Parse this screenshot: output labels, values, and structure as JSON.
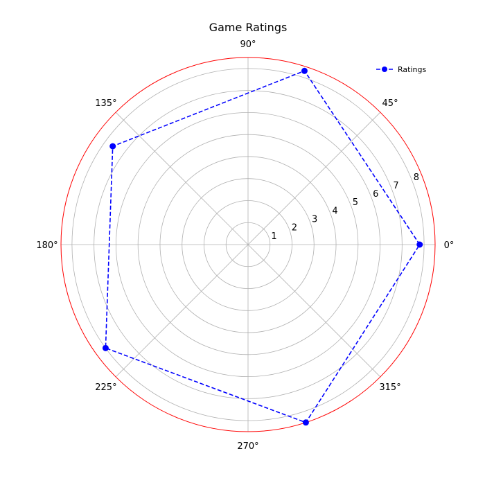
{
  "chart_data": {
    "type": "line",
    "projection": "polar",
    "title": "Game Ratings",
    "theta_tick_labels": [
      "0°",
      "45°",
      "90°",
      "135°",
      "180°",
      "225°",
      "270°",
      "315°"
    ],
    "theta_ticks_deg": [
      0,
      45,
      90,
      135,
      180,
      225,
      270,
      315
    ],
    "r_ticks": [
      1,
      2,
      3,
      4,
      5,
      6,
      7,
      8
    ],
    "r_tick_labels": [
      "1",
      "2",
      "3",
      "4",
      "5",
      "6",
      "7",
      "8"
    ],
    "rlim": [
      0,
      8.5
    ],
    "grid": true,
    "legend_position": "top-right",
    "series": [
      {
        "name": "Ratings",
        "theta_deg": [
          0,
          72,
          144,
          216,
          288,
          0
        ],
        "r": [
          7.8,
          8.3,
          7.6,
          8.0,
          8.5,
          7.8
        ],
        "color": "#0000ff",
        "line_style": "dashed",
        "marker": "circle"
      }
    ],
    "outer_ring_color": "#ff0000",
    "grid_color": "#b0b0b0"
  }
}
